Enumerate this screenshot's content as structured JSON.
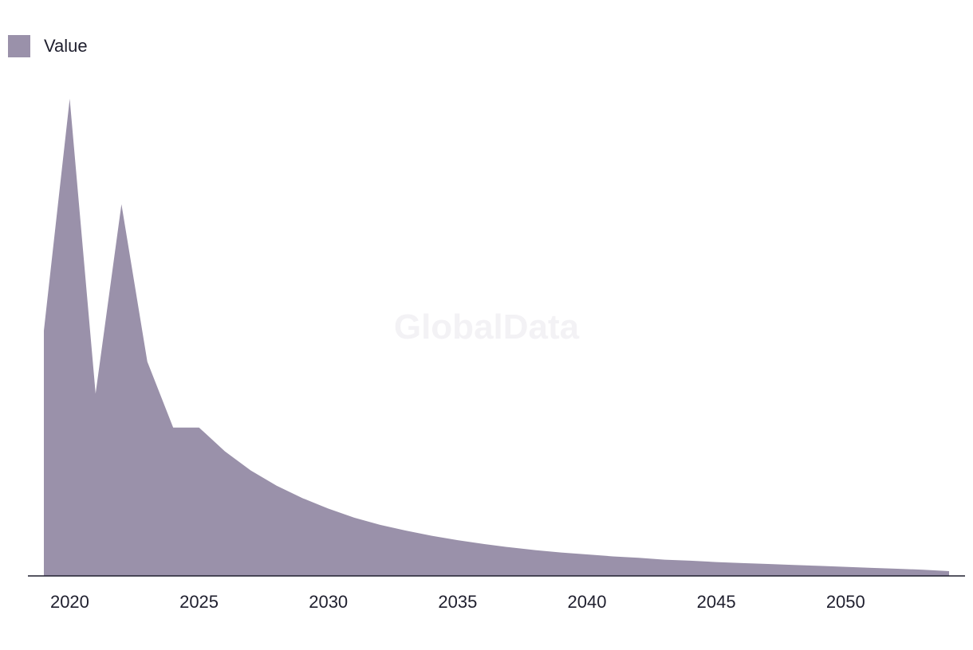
{
  "watermark": "GlobalData",
  "colors": {
    "series": "#9a91aa",
    "axis": "#1f1f2e"
  },
  "chart_data": {
    "type": "area",
    "title": "",
    "xlabel": "",
    "ylabel": "",
    "legend_position": "top-left",
    "grid": false,
    "xlim": [
      2019,
      2054
    ],
    "ylim": [
      0,
      100
    ],
    "x_ticks": [
      2020,
      2025,
      2030,
      2035,
      2040,
      2045,
      2050
    ],
    "series": [
      {
        "name": "Value",
        "x": [
          2019,
          2020,
          2021,
          2022,
          2023,
          2024,
          2025,
          2026,
          2027,
          2028,
          2029,
          2030,
          2031,
          2032,
          2033,
          2034,
          2035,
          2036,
          2037,
          2038,
          2039,
          2040,
          2041,
          2042,
          2043,
          2044,
          2045,
          2046,
          2047,
          2048,
          2049,
          2050,
          2051,
          2052,
          2053,
          2054
        ],
        "values": [
          51.4,
          100.0,
          38.2,
          77.9,
          44.9,
          31.1,
          31.1,
          26.1,
          22.1,
          18.9,
          16.3,
          14.1,
          12.2,
          10.7,
          9.5,
          8.4,
          7.5,
          6.7,
          6.0,
          5.4,
          4.9,
          4.5,
          4.1,
          3.8,
          3.4,
          3.2,
          2.9,
          2.7,
          2.5,
          2.3,
          2.1,
          1.9,
          1.7,
          1.5,
          1.3,
          1.0
        ]
      }
    ]
  }
}
